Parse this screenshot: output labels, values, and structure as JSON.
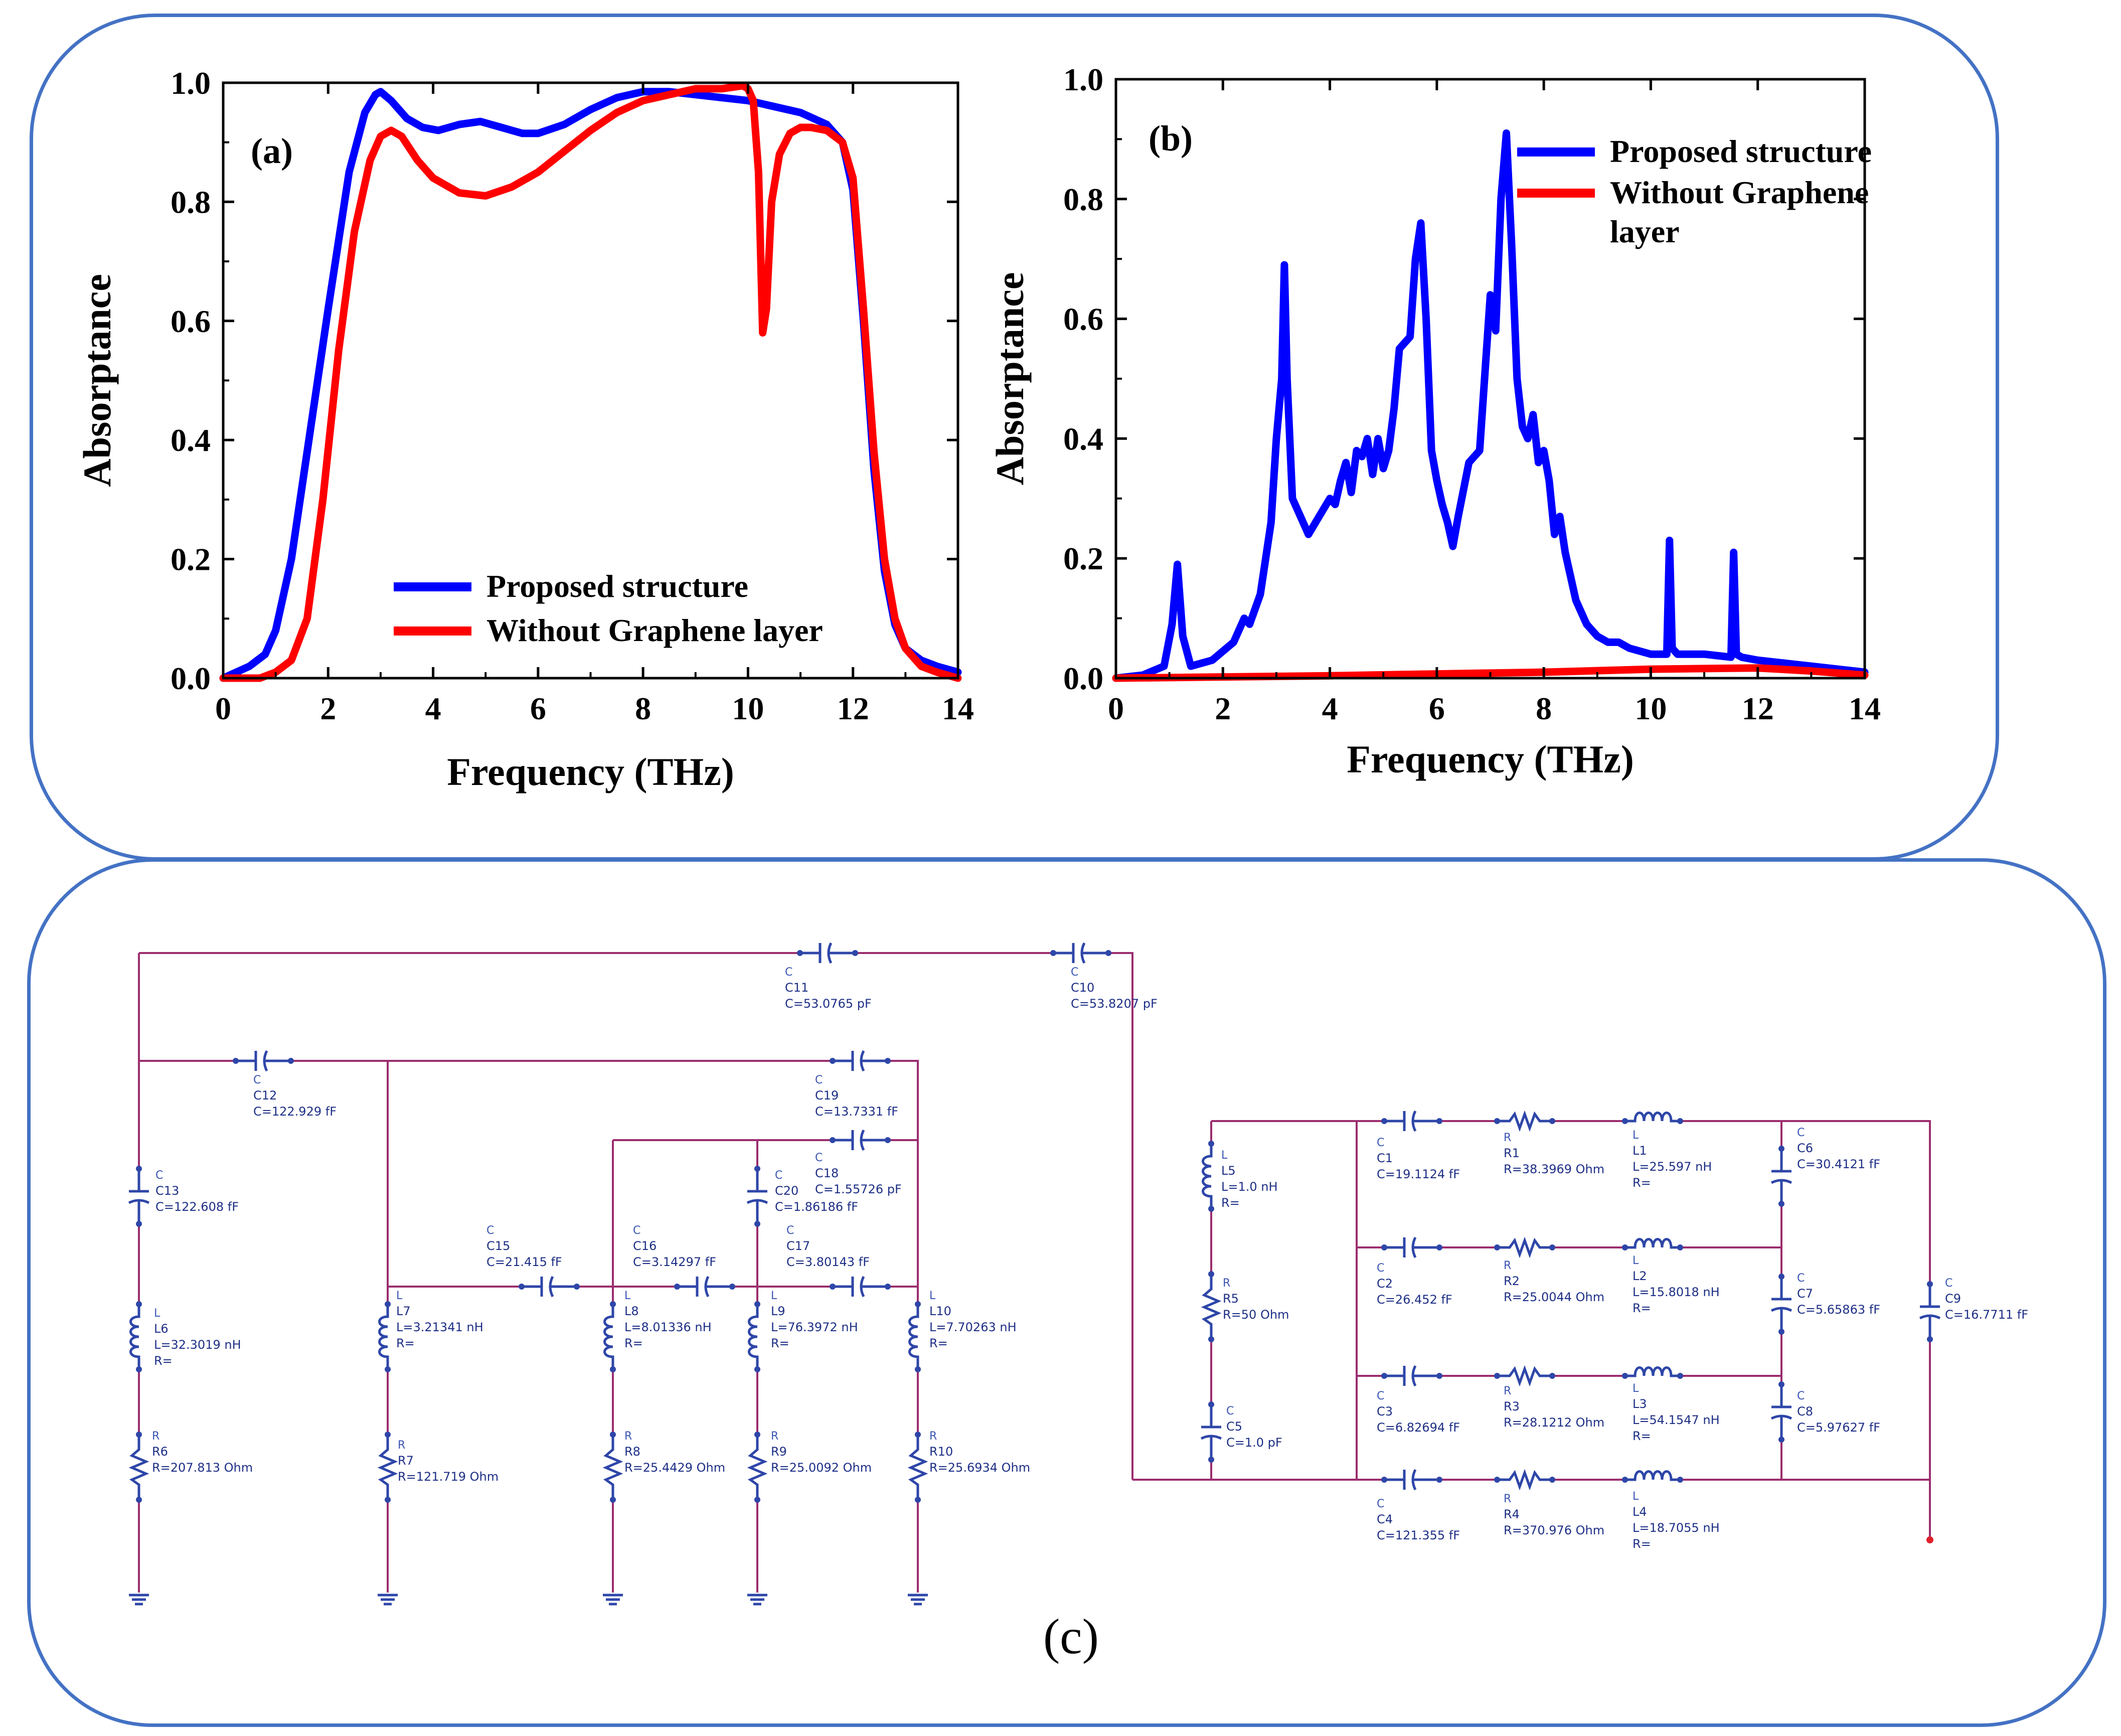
{
  "colors": {
    "frame": "#4472c4",
    "proposed": "#0000ff",
    "without": "#ff0000",
    "wire": "#9b2d6e",
    "component": "#2e46a8"
  },
  "chart_data": [
    {
      "id": "a",
      "type": "line",
      "panel_label": "(a)",
      "xlabel": "Frequency (THz)",
      "ylabel": "Absorptance",
      "xlim": [
        0,
        14
      ],
      "ylim": [
        0,
        1.0
      ],
      "xticks": [
        "0",
        "2",
        "4",
        "6",
        "8",
        "10",
        "12",
        "14"
      ],
      "yticks": [
        "0.0",
        "0.2",
        "0.4",
        "0.6",
        "0.8",
        "1.0"
      ],
      "legend_position": "bottom-center",
      "series": [
        {
          "name": "Proposed structure",
          "color": "#0000ff",
          "x": [
            0,
            0.5,
            0.8,
            1.0,
            1.3,
            1.6,
            2.0,
            2.4,
            2.7,
            2.9,
            3.0,
            3.2,
            3.5,
            3.8,
            4.1,
            4.5,
            4.9,
            5.3,
            5.7,
            6.0,
            6.5,
            7.0,
            7.5,
            8.0,
            8.5,
            9.0,
            9.5,
            10.0,
            10.5,
            11.0,
            11.5,
            11.8,
            12.0,
            12.2,
            12.4,
            12.6,
            12.8,
            13.0,
            13.3,
            13.6,
            14.0
          ],
          "y": [
            0.0,
            0.02,
            0.04,
            0.08,
            0.2,
            0.38,
            0.62,
            0.85,
            0.95,
            0.98,
            0.985,
            0.97,
            0.94,
            0.925,
            0.92,
            0.93,
            0.935,
            0.925,
            0.915,
            0.915,
            0.93,
            0.955,
            0.975,
            0.985,
            0.985,
            0.98,
            0.975,
            0.97,
            0.96,
            0.95,
            0.93,
            0.9,
            0.82,
            0.6,
            0.35,
            0.18,
            0.09,
            0.05,
            0.03,
            0.02,
            0.01
          ]
        },
        {
          "name": "Without Graphene layer",
          "color": "#ff0000",
          "x": [
            0,
            0.7,
            1.0,
            1.3,
            1.6,
            1.9,
            2.2,
            2.5,
            2.8,
            3.0,
            3.2,
            3.4,
            3.7,
            4.0,
            4.5,
            5.0,
            5.5,
            6.0,
            6.5,
            7.0,
            7.5,
            8.0,
            8.5,
            9.0,
            9.5,
            9.9,
            10.0,
            10.1,
            10.2,
            10.28,
            10.35,
            10.45,
            10.6,
            10.8,
            11.0,
            11.2,
            11.5,
            11.8,
            12.0,
            12.2,
            12.4,
            12.6,
            12.8,
            13.0,
            13.3,
            13.6,
            14.0
          ],
          "y": [
            0.0,
            0.0,
            0.01,
            0.03,
            0.1,
            0.3,
            0.55,
            0.75,
            0.87,
            0.91,
            0.92,
            0.91,
            0.87,
            0.84,
            0.815,
            0.81,
            0.825,
            0.85,
            0.885,
            0.92,
            0.95,
            0.97,
            0.98,
            0.99,
            0.99,
            0.995,
            0.99,
            0.97,
            0.85,
            0.58,
            0.62,
            0.8,
            0.88,
            0.915,
            0.925,
            0.925,
            0.92,
            0.9,
            0.84,
            0.62,
            0.38,
            0.2,
            0.1,
            0.05,
            0.02,
            0.01,
            0.0
          ]
        }
      ]
    },
    {
      "id": "b",
      "type": "line",
      "panel_label": "(b)",
      "xlabel": "Frequency (THz)",
      "ylabel": "Absorptance",
      "xlim": [
        0,
        14
      ],
      "ylim": [
        0,
        1.0
      ],
      "xticks": [
        "0",
        "2",
        "4",
        "6",
        "8",
        "10",
        "12",
        "14"
      ],
      "yticks": [
        "0.0",
        "0.2",
        "0.4",
        "0.6",
        "0.8",
        "1.0"
      ],
      "legend_position": "top-right",
      "series": [
        {
          "name": "Proposed structure",
          "color": "#0000ff",
          "x": [
            0,
            0.5,
            0.9,
            1.05,
            1.15,
            1.25,
            1.4,
            1.8,
            2.0,
            2.2,
            2.4,
            2.5,
            2.7,
            2.9,
            3.0,
            3.1,
            3.15,
            3.2,
            3.3,
            3.4,
            3.6,
            3.8,
            4.0,
            4.1,
            4.2,
            4.3,
            4.4,
            4.5,
            4.6,
            4.7,
            4.8,
            4.9,
            5.0,
            5.1,
            5.2,
            5.3,
            5.5,
            5.6,
            5.7,
            5.8,
            5.9,
            6.0,
            6.1,
            6.2,
            6.3,
            6.4,
            6.6,
            6.8,
            7.0,
            7.1,
            7.2,
            7.3,
            7.4,
            7.5,
            7.6,
            7.7,
            7.8,
            7.9,
            8.0,
            8.1,
            8.2,
            8.3,
            8.4,
            8.6,
            8.8,
            9.0,
            9.2,
            9.4,
            9.6,
            10.0,
            10.3,
            10.35,
            10.4,
            10.5,
            11.0,
            11.5,
            11.55,
            11.6,
            11.7,
            12.0,
            13.0,
            14.0
          ],
          "y": [
            0.0,
            0.005,
            0.02,
            0.09,
            0.19,
            0.07,
            0.02,
            0.03,
            0.045,
            0.06,
            0.1,
            0.09,
            0.14,
            0.26,
            0.4,
            0.5,
            0.69,
            0.5,
            0.3,
            0.28,
            0.24,
            0.27,
            0.3,
            0.29,
            0.33,
            0.36,
            0.31,
            0.38,
            0.37,
            0.4,
            0.34,
            0.4,
            0.35,
            0.38,
            0.45,
            0.55,
            0.57,
            0.7,
            0.76,
            0.6,
            0.38,
            0.33,
            0.29,
            0.26,
            0.22,
            0.27,
            0.36,
            0.38,
            0.64,
            0.58,
            0.8,
            0.91,
            0.72,
            0.5,
            0.42,
            0.4,
            0.44,
            0.36,
            0.38,
            0.33,
            0.24,
            0.27,
            0.21,
            0.13,
            0.09,
            0.07,
            0.06,
            0.06,
            0.05,
            0.04,
            0.04,
            0.23,
            0.05,
            0.04,
            0.04,
            0.035,
            0.21,
            0.04,
            0.035,
            0.03,
            0.02,
            0.01
          ]
        },
        {
          "name": "Without Graphene layer",
          "color": "#ff0000",
          "x": [
            0,
            2,
            4,
            6,
            8,
            10,
            12,
            13,
            14
          ],
          "y": [
            0.0,
            0.002,
            0.004,
            0.007,
            0.01,
            0.015,
            0.017,
            0.012,
            0.005
          ]
        }
      ]
    }
  ],
  "circuit": {
    "label": "(c)",
    "components": [
      {
        "id": "C11",
        "type": "C",
        "name": "C11",
        "value": "C=53.0765 pF"
      },
      {
        "id": "C10",
        "type": "C",
        "name": "C10",
        "value": "C=53.8207 pF"
      },
      {
        "id": "C12",
        "type": "C",
        "name": "C12",
        "value": "C=122.929 fF"
      },
      {
        "id": "C19",
        "type": "C",
        "name": "C19",
        "value": "C=13.7331 fF"
      },
      {
        "id": "C18",
        "type": "C",
        "name": "C18",
        "value": "C=1.55726 pF"
      },
      {
        "id": "C13",
        "type": "C",
        "name": "C13",
        "value": "C=122.608 fF"
      },
      {
        "id": "C20",
        "type": "C",
        "name": "C20",
        "value": "C=1.86186 fF"
      },
      {
        "id": "C15",
        "type": "C",
        "name": "C15",
        "value": "C=21.415 fF"
      },
      {
        "id": "C16",
        "type": "C",
        "name": "C16",
        "value": "C=3.14297 fF"
      },
      {
        "id": "C17",
        "type": "C",
        "name": "C17",
        "value": "C=3.80143 fF"
      },
      {
        "id": "L6",
        "type": "L",
        "name": "L6",
        "value": "L=32.3019 nH",
        "extra": "R="
      },
      {
        "id": "L7",
        "type": "L",
        "name": "L7",
        "value": "L=3.21341 nH",
        "extra": "R="
      },
      {
        "id": "L8",
        "type": "L",
        "name": "L8",
        "value": "L=8.01336 nH",
        "extra": "R="
      },
      {
        "id": "L9",
        "type": "L",
        "name": "L9",
        "value": "L=76.3972 nH",
        "extra": "R="
      },
      {
        "id": "L10",
        "type": "L",
        "name": "L10",
        "value": "L=7.70263 nH",
        "extra": "R="
      },
      {
        "id": "R6",
        "type": "R",
        "name": "R6",
        "value": "R=207.813 Ohm"
      },
      {
        "id": "R7",
        "type": "R",
        "name": "R7",
        "value": "R=121.719 Ohm"
      },
      {
        "id": "R8",
        "type": "R",
        "name": "R8",
        "value": "R=25.4429 Ohm"
      },
      {
        "id": "R9",
        "type": "R",
        "name": "R9",
        "value": "R=25.0092 Ohm"
      },
      {
        "id": "R10",
        "type": "R",
        "name": "R10",
        "value": "R=25.6934 Ohm"
      },
      {
        "id": "L5",
        "type": "L",
        "name": "L5",
        "value": "L=1.0 nH",
        "extra": "R="
      },
      {
        "id": "R5",
        "type": "R",
        "name": "R5",
        "value": "R=50 Ohm"
      },
      {
        "id": "C5",
        "type": "C",
        "name": "C5",
        "value": "C=1.0 pF"
      },
      {
        "id": "C1",
        "type": "C",
        "name": "C1",
        "value": "C=19.1124 fF"
      },
      {
        "id": "C2",
        "type": "C",
        "name": "C2",
        "value": "C=26.452 fF"
      },
      {
        "id": "C3",
        "type": "C",
        "name": "C3",
        "value": "C=6.82694 fF"
      },
      {
        "id": "C4",
        "type": "C",
        "name": "C4",
        "value": "C=121.355 fF"
      },
      {
        "id": "R1",
        "type": "R",
        "name": "R1",
        "value": "R=38.3969 Ohm"
      },
      {
        "id": "R2",
        "type": "R",
        "name": "R2",
        "value": "R=25.0044 Ohm"
      },
      {
        "id": "R3",
        "type": "R",
        "name": "R3",
        "value": "R=28.1212 Ohm"
      },
      {
        "id": "R4",
        "type": "R",
        "name": "R4",
        "value": "R=370.976 Ohm"
      },
      {
        "id": "L1",
        "type": "L",
        "name": "L1",
        "value": "L=25.597 nH",
        "extra": "R="
      },
      {
        "id": "L2",
        "type": "L",
        "name": "L2",
        "value": "L=15.8018 nH",
        "extra": "R="
      },
      {
        "id": "L3",
        "type": "L",
        "name": "L3",
        "value": "L=54.1547 nH",
        "extra": "R="
      },
      {
        "id": "L4",
        "type": "L",
        "name": "L4",
        "value": "L=18.7055 nH",
        "extra": "R="
      },
      {
        "id": "C6",
        "type": "C",
        "name": "C6",
        "value": "C=30.4121 fF"
      },
      {
        "id": "C7",
        "type": "C",
        "name": "C7",
        "value": "C=5.65863 fF"
      },
      {
        "id": "C8",
        "type": "C",
        "name": "C8",
        "value": "C=5.97627 fF"
      },
      {
        "id": "C9",
        "type": "C",
        "name": "C9",
        "value": "C=16.7711 fF"
      }
    ]
  }
}
